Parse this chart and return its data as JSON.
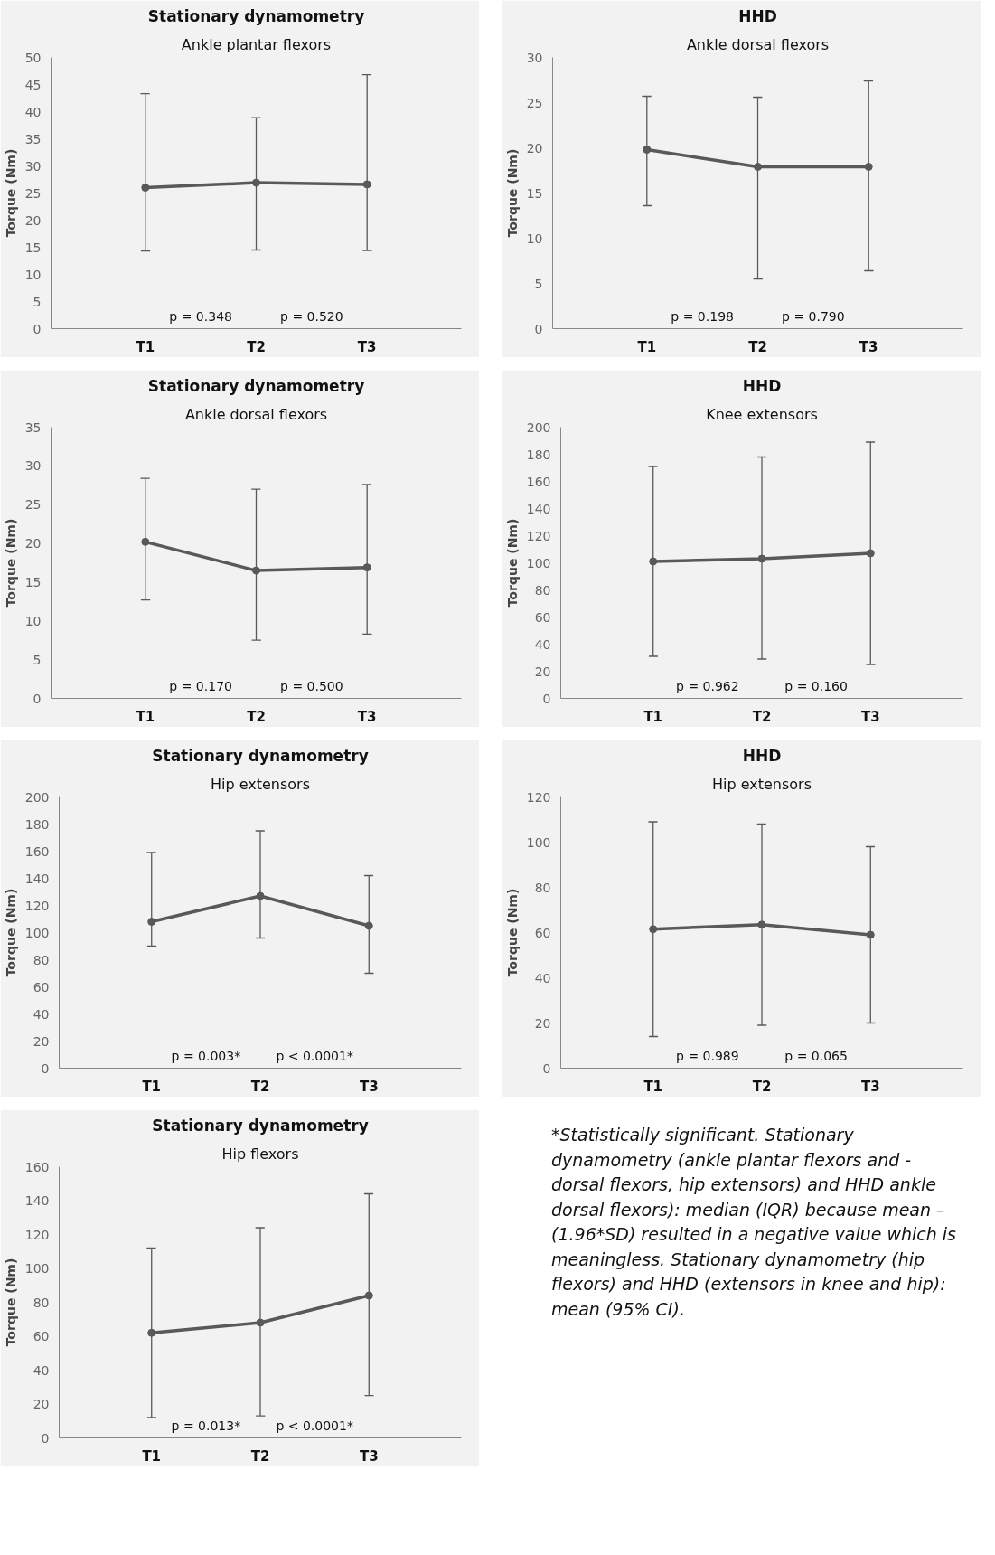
{
  "chart_data": [
    {
      "type": "line",
      "title": "Stationary dynamometry",
      "subtitle": "Ankle plantar flexors",
      "ylabel": "Torque (Nm)",
      "categories": [
        "T1",
        "T2",
        "T3"
      ],
      "series": [
        {
          "color": "#595959",
          "values": [
            26,
            26.9,
            26.6
          ],
          "errors": [
            [
              14.3,
              43.3
            ],
            [
              14.5,
              38.9
            ],
            [
              14.4,
              46.8
            ]
          ]
        }
      ],
      "ylim": [
        0,
        50
      ],
      "yticks": [
        0,
        5,
        10,
        15,
        20,
        25,
        30,
        35,
        40,
        45,
        50
      ],
      "marker": "circle",
      "annotations": [
        "p = 0.348",
        "p = 0.520"
      ]
    },
    {
      "type": "line",
      "title": "HHD",
      "subtitle": "Ankle dorsal flexors",
      "ylabel": "Torque (Nm)",
      "categories": [
        "T1",
        "T2",
        "T3"
      ],
      "series": [
        {
          "color": "#595959",
          "values": [
            19.8,
            17.9,
            17.9
          ],
          "errors": [
            [
              13.6,
              25.7
            ],
            [
              5.5,
              25.6
            ],
            [
              6.4,
              27.4
            ]
          ]
        }
      ],
      "ylim": [
        0,
        30
      ],
      "yticks": [
        0,
        5,
        10,
        15,
        20,
        25,
        30
      ],
      "marker": "circle",
      "annotations": [
        "p = 0.198",
        "p = 0.790"
      ]
    },
    {
      "type": "line",
      "title": "Stationary dynamometry",
      "subtitle": "Ankle dorsal flexors",
      "ylabel": "Torque (Nm)",
      "categories": [
        "T1",
        "T2",
        "T3"
      ],
      "series": [
        {
          "color": "#595959",
          "values": [
            20.2,
            16.5,
            16.9
          ],
          "errors": [
            [
              12.7,
              28.4
            ],
            [
              7.5,
              27.0
            ],
            [
              8.3,
              27.6
            ]
          ]
        }
      ],
      "ylim": [
        0,
        35
      ],
      "yticks": [
        0,
        5,
        10,
        15,
        20,
        25,
        30,
        35
      ],
      "marker": "circle",
      "annotations": [
        "p = 0.170",
        "p = 0.500"
      ]
    },
    {
      "type": "line",
      "title": "HHD",
      "subtitle": "Knee extensors",
      "ylabel": "Torque (Nm)",
      "categories": [
        "T1",
        "T2",
        "T3"
      ],
      "series": [
        {
          "color": "#595959",
          "values": [
            101,
            103,
            107
          ],
          "errors": [
            [
              31,
              171
            ],
            [
              29,
              178
            ],
            [
              25,
              189
            ]
          ]
        }
      ],
      "ylim": [
        0,
        200
      ],
      "yticks": [
        0,
        20,
        40,
        60,
        80,
        100,
        120,
        140,
        160,
        180,
        200
      ],
      "marker": "circle",
      "annotations": [
        "p = 0.962",
        "p = 0.160"
      ]
    },
    {
      "type": "line",
      "title": "Stationary dynamometry",
      "subtitle": "Hip extensors",
      "ylabel": "Torque (Nm)",
      "categories": [
        "T1",
        "T2",
        "T3"
      ],
      "series": [
        {
          "color": "#595959",
          "values": [
            108,
            127,
            105
          ],
          "errors": [
            [
              90,
              159
            ],
            [
              96,
              175
            ],
            [
              70,
              142
            ]
          ]
        }
      ],
      "ylim": [
        0,
        200
      ],
      "yticks": [
        0,
        20,
        40,
        60,
        80,
        100,
        120,
        140,
        160,
        180,
        200
      ],
      "marker": "circle",
      "annotations": [
        "p = 0.003*",
        "p < 0.0001*"
      ]
    },
    {
      "type": "line",
      "title": "HHD",
      "subtitle": "Hip extensors",
      "ylabel": "Torque (Nm)",
      "categories": [
        "T1",
        "T2",
        "T3"
      ],
      "series": [
        {
          "color": "#595959",
          "values": [
            61.5,
            63.5,
            59
          ],
          "errors": [
            [
              14,
              109
            ],
            [
              19,
              108
            ],
            [
              20,
              98
            ]
          ]
        }
      ],
      "ylim": [
        0,
        120
      ],
      "yticks": [
        0,
        20,
        40,
        60,
        80,
        100,
        120
      ],
      "marker": "circle",
      "annotations": [
        "p = 0.989",
        "p = 0.065"
      ]
    },
    {
      "type": "line",
      "title": "Stationary dynamometry",
      "subtitle": "Hip flexors",
      "ylabel": "Torque (Nm)",
      "categories": [
        "T1",
        "T2",
        "T3"
      ],
      "series": [
        {
          "color": "#595959",
          "values": [
            62,
            68,
            84
          ],
          "errors": [
            [
              12,
              112
            ],
            [
              13,
              124
            ],
            [
              25,
              144
            ]
          ]
        }
      ],
      "ylim": [
        0,
        160
      ],
      "yticks": [
        0,
        20,
        40,
        60,
        80,
        100,
        120,
        140,
        160
      ],
      "marker": "circle",
      "annotations": [
        "p = 0.013*",
        "p < 0.0001*"
      ]
    },
    {
      "type": "other",
      "annotations": [
        "*Statistically significant. Stationary dynamometry (ankle plantar flexors and -dorsal flexors, hip extensors) and HHD ankle dorsal flexors): median (IQR) because mean – (1.96*SD) resulted in a negative value which is meaningless. Stationary dynamometry (hip flexors) and HHD (extensors in knee and hip): mean (95% CI)."
      ]
    }
  ]
}
